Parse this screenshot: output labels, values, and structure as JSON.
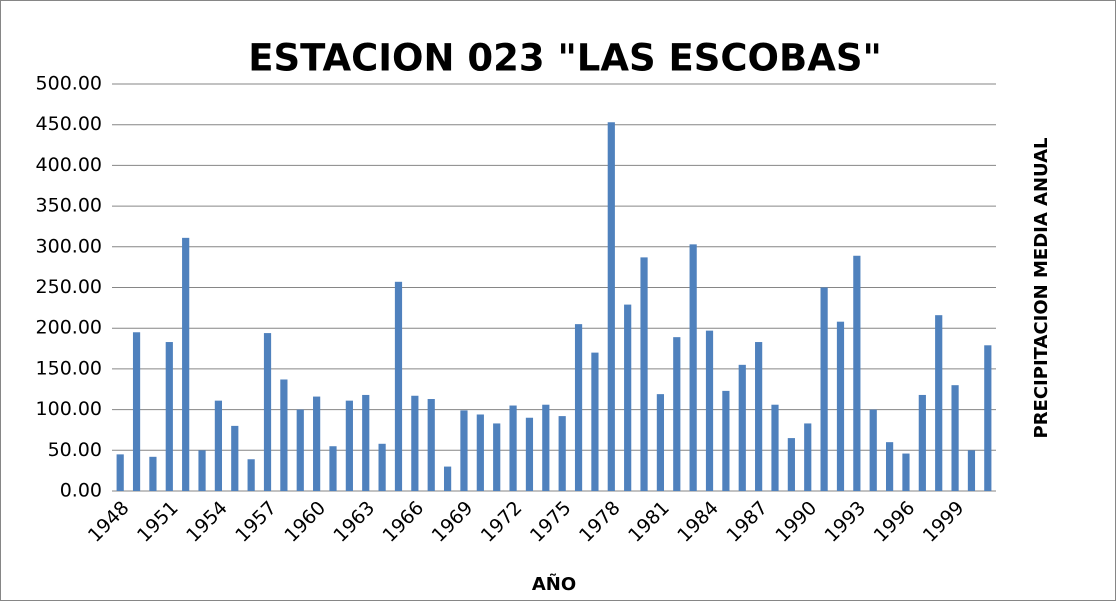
{
  "chart_data": {
    "type": "bar",
    "title": "ESTACION 023 \"LAS ESCOBAS\"",
    "x_label": "AÑO",
    "y_label": "PRECIPITACION MEDIA ANUAL",
    "categories": [
      "1948",
      null,
      null,
      "1951",
      null,
      null,
      "1954",
      null,
      null,
      "1957",
      null,
      null,
      "1960",
      null,
      null,
      "1963",
      null,
      null,
      "1966",
      null,
      null,
      "1969",
      null,
      null,
      "1972",
      null,
      null,
      "1975",
      null,
      null,
      "1978",
      null,
      null,
      "1981",
      null,
      null,
      "1984",
      null,
      null,
      "1987",
      null,
      null,
      "1990",
      null,
      null,
      "1993",
      null,
      null,
      "1996",
      null,
      null,
      "1999",
      null,
      null
    ],
    "values": [
      45,
      195,
      42,
      183,
      311,
      50,
      111,
      80,
      39,
      194,
      137,
      100,
      116,
      55,
      111,
      118,
      58,
      257,
      117,
      113,
      30,
      99,
      94,
      83,
      105,
      90,
      106,
      92,
      205,
      170,
      453,
      229,
      287,
      119,
      189,
      303,
      197,
      123,
      155,
      183,
      106,
      65,
      83,
      250,
      208,
      289,
      100,
      60,
      46,
      118,
      216,
      130,
      50,
      179
    ],
    "color": "#4f81bd",
    "ylim": [
      0,
      500
    ],
    "yticks": [
      {
        "value": 0,
        "label": "0.00"
      },
      {
        "value": 50,
        "label": "50.00"
      },
      {
        "value": 100,
        "label": "100.00"
      },
      {
        "value": 150,
        "label": "150.00"
      },
      {
        "value": 200,
        "label": "200.00"
      },
      {
        "value": 250,
        "label": "250.00"
      },
      {
        "value": 300,
        "label": "300.00"
      },
      {
        "value": 350,
        "label": "350.00"
      },
      {
        "value": 400,
        "label": "400.00"
      },
      {
        "value": 450,
        "label": "450.00"
      },
      {
        "value": 500,
        "label": "500.00"
      }
    ],
    "grid": true
  }
}
